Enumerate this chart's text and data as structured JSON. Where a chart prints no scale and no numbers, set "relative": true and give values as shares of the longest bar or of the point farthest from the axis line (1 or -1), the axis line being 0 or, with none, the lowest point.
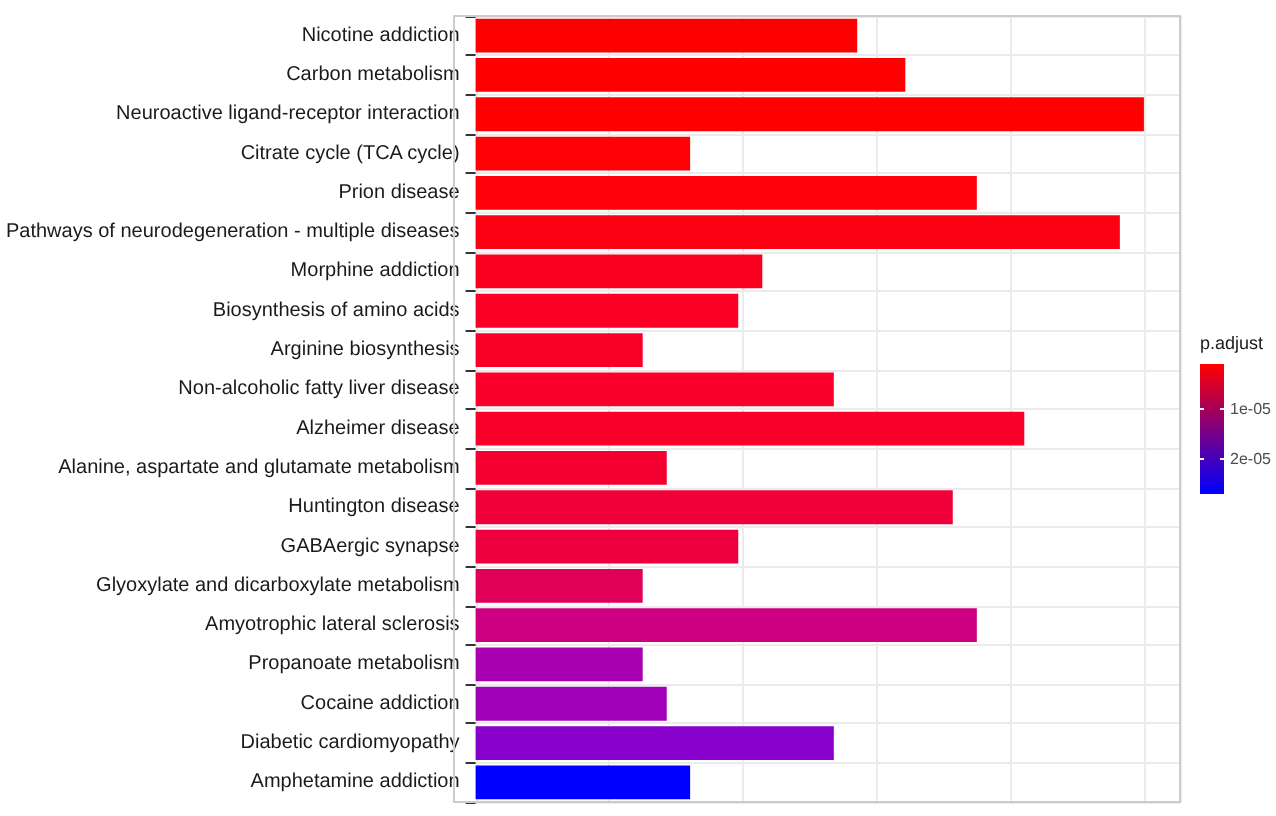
{
  "chart_data": {
    "type": "bar",
    "orientation": "horizontal",
    "relative": true,
    "grid": true,
    "clabel": "p.adjust",
    "clim": [
      1e-06,
      2.7e-05
    ],
    "cticks": [
      {
        "value": 1e-05,
        "label": "1e-05"
      },
      {
        "value": 2e-05,
        "label": "2e-05"
      }
    ],
    "categories": [
      "Nicotine addiction",
      "Carbon metabolism",
      "Neuroactive ligand-receptor interaction",
      "Citrate cycle (TCA cycle)",
      "Prion disease",
      "Pathways of neurodegeneration - multiple diseases",
      "Morphine addiction",
      "Biosynthesis of amino acids",
      "Arginine biosynthesis",
      "Non-alcoholic fatty liver disease",
      "Alzheimer disease",
      "Alanine, aspartate and glutamate metabolism",
      "Huntington disease",
      "GABAergic synapse",
      "Glyoxylate and dicarboxylate metabolism",
      "Amyotrophic lateral sclerosis",
      "Propanoate metabolism",
      "Cocaine addiction",
      "Diabetic cardiomyopathy",
      "Amphetamine addiction"
    ],
    "values": [
      0.571,
      0.643,
      1,
      0.321,
      0.75,
      0.964,
      0.429,
      0.393,
      0.25,
      0.536,
      0.821,
      0.286,
      0.714,
      0.393,
      0.25,
      0.75,
      0.25,
      0.286,
      0.536,
      0.321
    ],
    "colors": [
      "#ff0000",
      "#ff0000",
      "#ff0000",
      "#ff0004",
      "#fe0008",
      "#fb0010",
      "#fa0020",
      "#fa0024",
      "#f80028",
      "#f8002a",
      "#f8002a",
      "#f40030",
      "#f00038",
      "#ee0040",
      "#e00058",
      "#cc0080",
      "#a800b0",
      "#a000b8",
      "#8800cc",
      "#0000ff"
    ]
  }
}
